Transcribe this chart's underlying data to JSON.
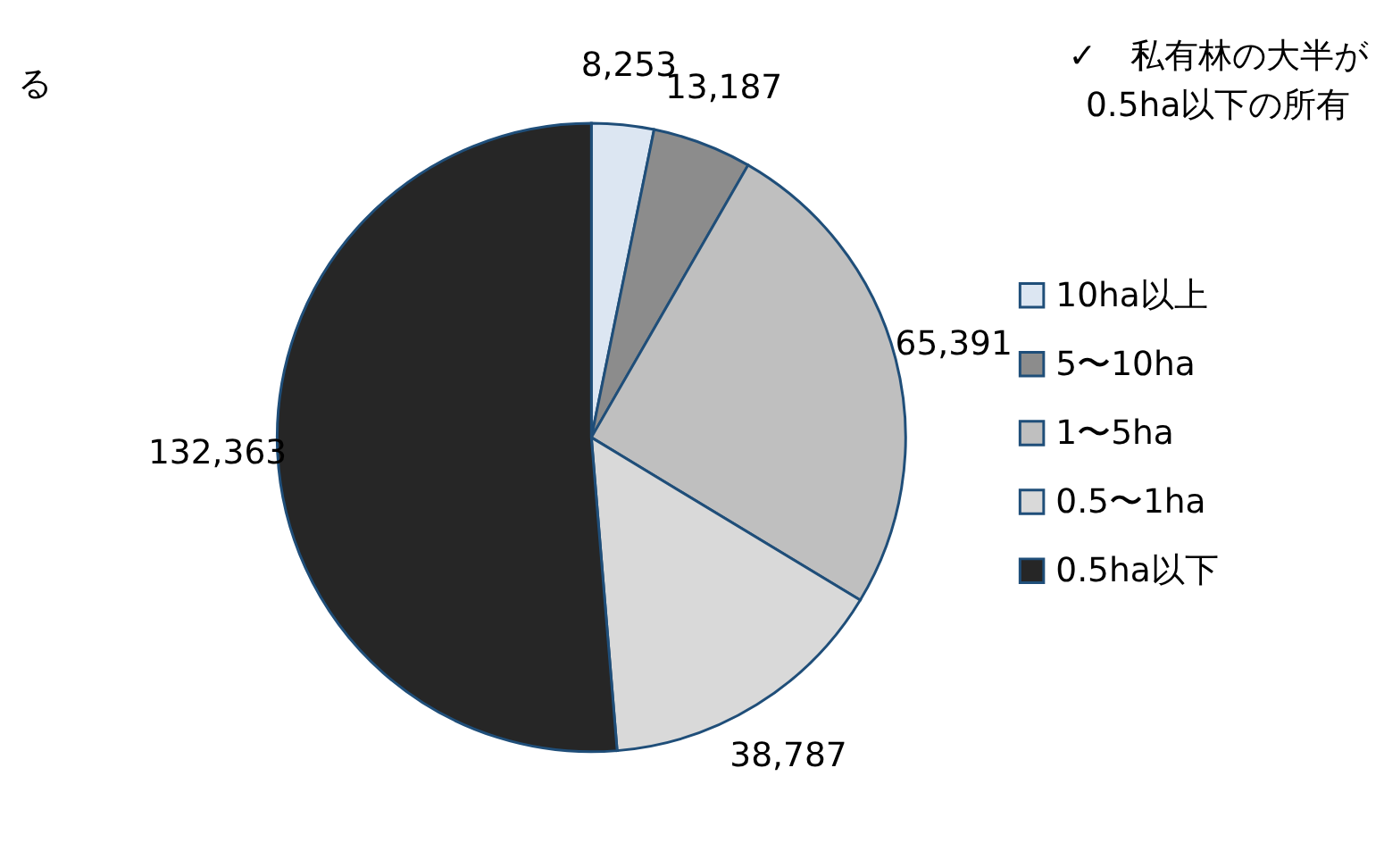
{
  "chart_data": {
    "type": "pie",
    "categories": [
      "10ha以上",
      "5〜10ha",
      "1〜5ha",
      "0.5〜1ha",
      "0.5ha以下"
    ],
    "values": [
      8253,
      13187,
      65391,
      38787,
      132363
    ],
    "colors": [
      "#dce6f2",
      "#8c8c8c",
      "#bfbfbf",
      "#d9d9d9",
      "#262626"
    ],
    "value_labels": [
      "8,253",
      "13,187",
      "65,391",
      "38,787",
      "132,363"
    ],
    "legend": "right",
    "annotations": [
      "る",
      "✓　私有林の大半が\n0.5ha以下の所有"
    ]
  }
}
